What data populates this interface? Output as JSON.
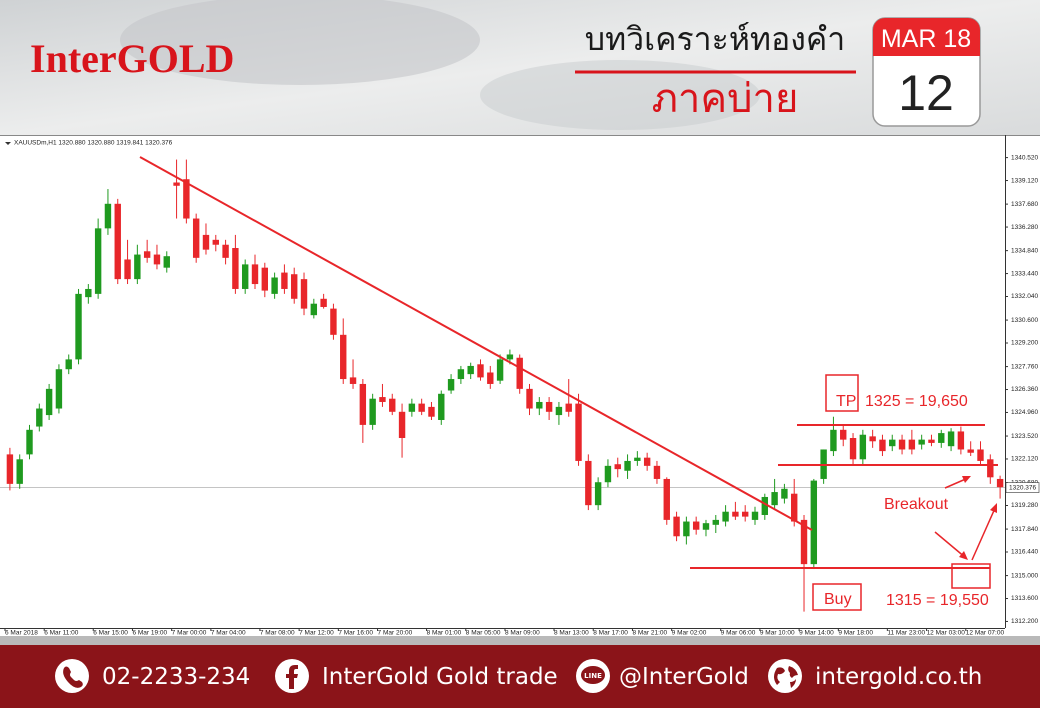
{
  "header": {
    "brand": "InterGOLD",
    "title": "บทวิเคราะห์ทองคำ",
    "subtitle": "ภาคบ่าย",
    "calendar": {
      "month": "MAR 18",
      "day": "12"
    }
  },
  "chart_data": {
    "type": "candlestick",
    "symbol_info": "XAUUSDm,H1  1320.880 1320.880 1319.841 1320.376",
    "up_color": "#1f9a1f",
    "down_color": "#e8262a",
    "categories": [
      "6 Mar 2018",
      null,
      null,
      null,
      "6 Mar 11:00",
      null,
      null,
      null,
      null,
      "6 Mar 15:00",
      null,
      null,
      null,
      "6 Mar 19:00",
      null,
      null,
      null,
      "7 Mar 00:00",
      null,
      null,
      null,
      "7 Mar 04:00",
      null,
      null,
      null,
      null,
      "7 Mar 08:00",
      null,
      null,
      null,
      "7 Mar 12:00",
      null,
      null,
      null,
      "7 Mar 16:00",
      null,
      null,
      null,
      "7 Mar 20:00",
      null,
      null,
      null,
      null,
      "8 Mar 01:00",
      null,
      null,
      null,
      "8 Mar 05:00",
      null,
      null,
      null,
      "8 Mar 09:00",
      null,
      null,
      null,
      null,
      "8 Mar 13:00",
      null,
      null,
      null,
      "8 Mar 17:00",
      null,
      null,
      null,
      "8 Mar 21:00",
      null,
      null,
      null,
      "9 Mar 02:00",
      null,
      null,
      null,
      null,
      "9 Mar 06:00",
      null,
      null,
      null,
      "9 Mar 10:00",
      null,
      null,
      null,
      "9 Mar 14:00",
      null,
      null,
      null,
      "9 Mar 18:00",
      null,
      null,
      null,
      null,
      "11 Mar 23:00",
      null,
      null,
      null,
      "12 Mar 03:00",
      null,
      null,
      null,
      "12 Mar 07:00",
      null,
      null,
      null
    ],
    "candles": [
      [
        1322.4,
        1322.8,
        1320.2,
        1320.6
      ],
      [
        1320.6,
        1322.4,
        1320.3,
        1322.1
      ],
      [
        1322.4,
        1324.2,
        1322.1,
        1323.9
      ],
      [
        1324.1,
        1325.5,
        1323.8,
        1325.2
      ],
      [
        1324.8,
        1326.7,
        1324.5,
        1326.4
      ],
      [
        1325.2,
        1327.9,
        1324.9,
        1327.6
      ],
      [
        1327.6,
        1328.5,
        1327.3,
        1328.2
      ],
      [
        1328.2,
        1332.5,
        1327.9,
        1332.2
      ],
      [
        1332.0,
        1332.8,
        1331.6,
        1332.5
      ],
      [
        1332.2,
        1336.8,
        1331.9,
        1336.2
      ],
      [
        1336.2,
        1338.6,
        1335.8,
        1337.7
      ],
      [
        1337.7,
        1338.0,
        1332.8,
        1333.1
      ],
      [
        1334.3,
        1335.5,
        1332.8,
        1333.1
      ],
      [
        1333.1,
        1335.2,
        1332.8,
        1334.6
      ],
      [
        1334.8,
        1335.5,
        1334.1,
        1334.4
      ],
      [
        1334.6,
        1335.2,
        1333.7,
        1334.0
      ],
      [
        1333.8,
        1334.8,
        1333.5,
        1334.5
      ],
      [
        1339.0,
        1340.4,
        1336.8,
        1338.8
      ],
      [
        1339.2,
        1340.4,
        1336.5,
        1336.8
      ],
      [
        1336.8,
        1337.1,
        1334.1,
        1334.4
      ],
      [
        1335.8,
        1336.5,
        1334.6,
        1334.9
      ],
      [
        1335.5,
        1335.8,
        1334.8,
        1335.2
      ],
      [
        1335.2,
        1335.5,
        1334.0,
        1334.4
      ],
      [
        1335.0,
        1335.8,
        1332.2,
        1332.5
      ],
      [
        1332.5,
        1334.3,
        1332.2,
        1334.0
      ],
      [
        1334.0,
        1334.6,
        1332.5,
        1332.8
      ],
      [
        1333.8,
        1334.1,
        1332.0,
        1332.4
      ],
      [
        1332.2,
        1333.5,
        1331.9,
        1333.2
      ],
      [
        1333.5,
        1334.0,
        1332.2,
        1332.5
      ],
      [
        1333.4,
        1333.8,
        1331.6,
        1331.9
      ],
      [
        1333.1,
        1333.5,
        1330.9,
        1331.3
      ],
      [
        1330.9,
        1331.9,
        1330.7,
        1331.6
      ],
      [
        1331.9,
        1332.2,
        1331.3,
        1331.4
      ],
      [
        1331.3,
        1331.6,
        1329.4,
        1329.7
      ],
      [
        1329.7,
        1330.7,
        1326.7,
        1327.0
      ],
      [
        1327.1,
        1328.2,
        1326.4,
        1326.7
      ],
      [
        1326.7,
        1327.0,
        1323.1,
        1324.2
      ],
      [
        1324.2,
        1326.1,
        1323.9,
        1325.8
      ],
      [
        1325.9,
        1326.7,
        1325.3,
        1325.6
      ],
      [
        1325.8,
        1326.1,
        1324.8,
        1325.0
      ],
      [
        1325.0,
        1325.5,
        1322.2,
        1323.4
      ],
      [
        1325.0,
        1325.8,
        1324.7,
        1325.5
      ],
      [
        1325.5,
        1325.8,
        1324.8,
        1325.0
      ],
      [
        1325.3,
        1325.6,
        1324.5,
        1324.7
      ],
      [
        1324.5,
        1326.3,
        1324.2,
        1326.1
      ],
      [
        1326.3,
        1327.3,
        1326.1,
        1327.0
      ],
      [
        1327.0,
        1327.8,
        1326.7,
        1327.6
      ],
      [
        1327.3,
        1328.0,
        1327.0,
        1327.8
      ],
      [
        1327.9,
        1328.2,
        1326.9,
        1327.1
      ],
      [
        1327.4,
        1327.8,
        1326.4,
        1326.7
      ],
      [
        1326.9,
        1328.5,
        1326.7,
        1328.2
      ],
      [
        1328.2,
        1328.8,
        1327.9,
        1328.5
      ],
      [
        1328.3,
        1328.5,
        1326.1,
        1326.4
      ],
      [
        1326.4,
        1326.7,
        1324.8,
        1325.2
      ],
      [
        1325.2,
        1325.9,
        1324.8,
        1325.6
      ],
      [
        1325.6,
        1325.9,
        1324.5,
        1325.0
      ],
      [
        1324.8,
        1325.6,
        1324.2,
        1325.3
      ],
      [
        1325.5,
        1327.0,
        1324.7,
        1325.0
      ],
      [
        1325.5,
        1326.1,
        1321.7,
        1322.0
      ],
      [
        1322.0,
        1322.4,
        1319.0,
        1319.3
      ],
      [
        1319.3,
        1321.0,
        1319.0,
        1320.7
      ],
      [
        1320.7,
        1322.1,
        1320.4,
        1321.7
      ],
      [
        1321.8,
        1322.2,
        1321.0,
        1321.5
      ],
      [
        1321.4,
        1322.4,
        1320.9,
        1322.0
      ],
      [
        1322.0,
        1322.6,
        1321.7,
        1322.2
      ],
      [
        1322.2,
        1322.5,
        1321.4,
        1321.7
      ],
      [
        1321.7,
        1322.0,
        1320.6,
        1320.9
      ],
      [
        1320.9,
        1321.0,
        1318.1,
        1318.4
      ],
      [
        1318.6,
        1318.9,
        1317.1,
        1317.4
      ],
      [
        1317.4,
        1318.6,
        1316.9,
        1318.3
      ],
      [
        1318.3,
        1318.6,
        1317.5,
        1317.8
      ],
      [
        1317.8,
        1318.4,
        1317.4,
        1318.2
      ],
      [
        1318.1,
        1318.7,
        1317.6,
        1318.4
      ],
      [
        1318.3,
        1319.3,
        1318.0,
        1318.9
      ],
      [
        1318.9,
        1319.5,
        1318.4,
        1318.6
      ],
      [
        1318.9,
        1319.3,
        1318.3,
        1318.6
      ],
      [
        1318.4,
        1319.2,
        1318.1,
        1318.9
      ],
      [
        1318.7,
        1320.0,
        1318.4,
        1319.8
      ],
      [
        1319.3,
        1320.9,
        1319.0,
        1320.1
      ],
      [
        1319.7,
        1320.6,
        1319.4,
        1320.3
      ],
      [
        1320.0,
        1320.9,
        1318.0,
        1318.3
      ],
      [
        1318.4,
        1318.7,
        1312.8,
        1315.7
      ],
      [
        1315.7,
        1320.9,
        1315.4,
        1320.8
      ],
      [
        1320.9,
        1322.7,
        1320.6,
        1322.7
      ],
      [
        1322.6,
        1324.7,
        1322.3,
        1323.9
      ],
      [
        1323.9,
        1324.2,
        1322.9,
        1323.3
      ],
      [
        1323.4,
        1323.7,
        1321.8,
        1322.1
      ],
      [
        1322.1,
        1323.9,
        1321.8,
        1323.6
      ],
      [
        1323.5,
        1323.9,
        1322.8,
        1323.2
      ],
      [
        1323.3,
        1323.6,
        1322.3,
        1322.6
      ],
      [
        1322.9,
        1323.6,
        1322.6,
        1323.3
      ],
      [
        1323.3,
        1323.6,
        1322.4,
        1322.7
      ],
      [
        1323.3,
        1323.9,
        1322.4,
        1322.7
      ],
      [
        1323.0,
        1323.6,
        1322.7,
        1323.3
      ],
      [
        1323.3,
        1323.6,
        1322.9,
        1323.1
      ],
      [
        1323.1,
        1323.9,
        1322.8,
        1323.7
      ],
      [
        1322.9,
        1324.0,
        1322.6,
        1323.8
      ],
      [
        1323.8,
        1324.1,
        1322.4,
        1322.7
      ],
      [
        1322.7,
        1323.2,
        1322.3,
        1322.5
      ],
      [
        1322.7,
        1323.2,
        1321.8,
        1322.0
      ],
      [
        1322.1,
        1322.4,
        1320.6,
        1321.0
      ],
      [
        1320.9,
        1321.1,
        1319.7,
        1320.4
      ]
    ],
    "ylim": [
      1311.8,
      1341.9
    ],
    "yticks": [
      {
        "value": 1340.52,
        "label": "1340.520"
      },
      {
        "value": 1339.12,
        "label": "1339.120"
      },
      {
        "value": 1337.68,
        "label": "1337.680"
      },
      {
        "value": 1336.28,
        "label": "1336.280"
      },
      {
        "value": 1334.84,
        "label": "1334.840"
      },
      {
        "value": 1333.44,
        "label": "1333.440"
      },
      {
        "value": 1332.04,
        "label": "1332.040"
      },
      {
        "value": 1330.6,
        "label": "1330.600"
      },
      {
        "value": 1329.2,
        "label": "1329.200"
      },
      {
        "value": 1327.76,
        "label": "1327.760"
      },
      {
        "value": 1326.36,
        "label": "1326.360"
      },
      {
        "value": 1324.96,
        "label": "1324.960"
      },
      {
        "value": 1323.52,
        "label": "1323.520"
      },
      {
        "value": 1322.12,
        "label": "1322.120"
      },
      {
        "value": 1320.68,
        "label": "1320.680"
      },
      {
        "value": 1319.28,
        "label": "1319.280"
      },
      {
        "value": 1317.84,
        "label": "1317.840"
      },
      {
        "value": 1316.44,
        "label": "1316.440"
      },
      {
        "value": 1315,
        "label": "1315.000"
      },
      {
        "value": 1313.6,
        "label": "1313.600"
      },
      {
        "value": 1312.2,
        "label": "1312.200"
      }
    ],
    "last_price": {
      "value": 1320.376,
      "label": "1320.376"
    },
    "annotations": {
      "tp": "TP",
      "tp_text": "1325 = 19,650",
      "breakout": "Breakout",
      "buy": "Buy",
      "buy_text": "1315 = 19,550"
    }
  },
  "footer": {
    "phone": "02-2233-234",
    "facebook": "InterGold Gold trade",
    "line_icon": "LINE",
    "line": "@InterGold",
    "website": "intergold.co.th"
  }
}
